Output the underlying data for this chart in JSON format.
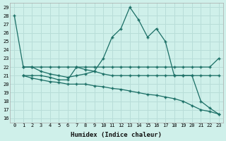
{
  "xlabel": "Humidex (Indice chaleur)",
  "ylabel": "",
  "background_color": "#cff0ea",
  "grid_color": "#b8ddd8",
  "line_color": "#1a6e65",
  "xlim": [
    -0.5,
    23.5
  ],
  "ylim": [
    15.5,
    29.5
  ],
  "yticks": [
    16,
    17,
    18,
    19,
    20,
    21,
    22,
    23,
    24,
    25,
    26,
    27,
    28,
    29
  ],
  "xticks": [
    0,
    1,
    2,
    3,
    4,
    5,
    6,
    7,
    8,
    9,
    10,
    11,
    12,
    13,
    14,
    15,
    16,
    17,
    18,
    19,
    20,
    21,
    22,
    23
  ],
  "lines": [
    {
      "x": [
        0,
        1,
        2,
        3,
        4,
        5,
        6,
        7,
        8,
        9,
        10,
        11,
        12,
        13,
        14,
        15,
        16,
        17,
        18,
        19,
        20,
        21,
        22,
        23
      ],
      "y": [
        28,
        22,
        22,
        21.5,
        21.2,
        21.0,
        20.8,
        21.0,
        21.2,
        21.5,
        23.0,
        25.5,
        26.5,
        29.0,
        27.5,
        25.5,
        26.5,
        25.0,
        21.0,
        21.0,
        21.0,
        18.0,
        17.2,
        16.5
      ]
    },
    {
      "x": [
        1,
        2,
        3,
        4,
        5,
        6,
        7,
        8,
        9,
        10,
        11,
        12,
        13,
        14,
        15,
        16,
        17,
        18,
        19,
        20,
        21,
        22,
        23
      ],
      "y": [
        22,
        22,
        22,
        22,
        22,
        22,
        22,
        22,
        22,
        22,
        22,
        22,
        22,
        22,
        22,
        22,
        22,
        22,
        22,
        22,
        22,
        22,
        23
      ]
    },
    {
      "x": [
        1,
        2,
        3,
        4,
        5,
        6,
        7,
        8,
        9,
        10,
        11,
        12,
        13,
        14,
        15,
        16,
        17,
        18,
        19,
        20,
        21,
        22,
        23
      ],
      "y": [
        21.0,
        21.0,
        21.0,
        20.8,
        20.5,
        20.5,
        22.0,
        21.7,
        21.5,
        21.2,
        21.0,
        21.0,
        21.0,
        21.0,
        21.0,
        21.0,
        21.0,
        21.0,
        21.0,
        21.0,
        21.0,
        21.0,
        21.0
      ]
    },
    {
      "x": [
        1,
        2,
        3,
        4,
        5,
        6,
        7,
        8,
        9,
        10,
        11,
        12,
        13,
        14,
        15,
        16,
        17,
        18,
        19,
        20,
        21,
        22,
        23
      ],
      "y": [
        21.0,
        20.7,
        20.5,
        20.3,
        20.2,
        20.0,
        20.0,
        20.0,
        19.8,
        19.7,
        19.5,
        19.4,
        19.2,
        19.0,
        18.8,
        18.7,
        18.5,
        18.3,
        18.0,
        17.5,
        17.0,
        16.8,
        16.5
      ]
    }
  ]
}
